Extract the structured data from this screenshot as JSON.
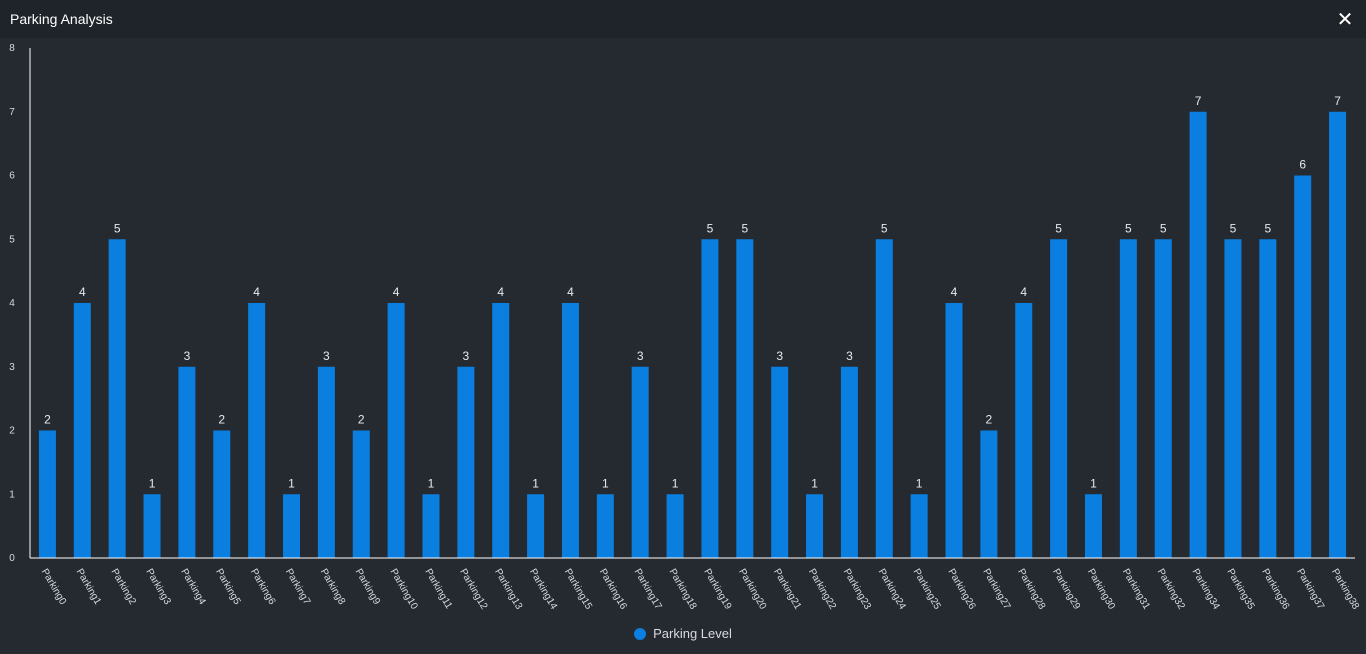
{
  "window": {
    "title": "Parking Analysis",
    "close_label": "✕"
  },
  "colors": {
    "background": "#252a31",
    "titlebar": "#1f242a",
    "bar": "#0a7fe0",
    "axis": "#ffffff",
    "tick_text": "#d8dadd",
    "label_text": "#e8e9eb"
  },
  "chart_data": {
    "type": "bar",
    "categories": [
      "Parking0",
      "Parking1",
      "Parking2",
      "Parking3",
      "Parking4",
      "Parking5",
      "Parking6",
      "Parking7",
      "Parking8",
      "Parking9",
      "Parking10",
      "Parking11",
      "Parking12",
      "Parking13",
      "Parking14",
      "Parking15",
      "Parking16",
      "Parking17",
      "Parking18",
      "Parking19",
      "Parking20",
      "Parking21",
      "Parking22",
      "Parking23",
      "Parking24",
      "Parking25",
      "Parking26",
      "Parking27",
      "Parking28",
      "Parking29",
      "Parking30",
      "Parking31",
      "Parking32",
      "Parking34",
      "Parking35",
      "Parking36",
      "Parking37",
      "Parking38"
    ],
    "series": [
      {
        "name": "Parking Level",
        "values": [
          2,
          4,
          5,
          1,
          3,
          2,
          4,
          1,
          3,
          2,
          4,
          1,
          3,
          4,
          1,
          4,
          1,
          3,
          1,
          5,
          5,
          3,
          1,
          3,
          5,
          1,
          4,
          2,
          4,
          5,
          1,
          5,
          5,
          7,
          5,
          5,
          6,
          7
        ]
      }
    ],
    "ylim": [
      0,
      8
    ],
    "yticks": [
      0,
      1,
      2,
      3,
      4,
      5,
      6,
      7,
      8
    ],
    "data_labels": true,
    "grid": false,
    "legend_position": "bottom-center"
  }
}
